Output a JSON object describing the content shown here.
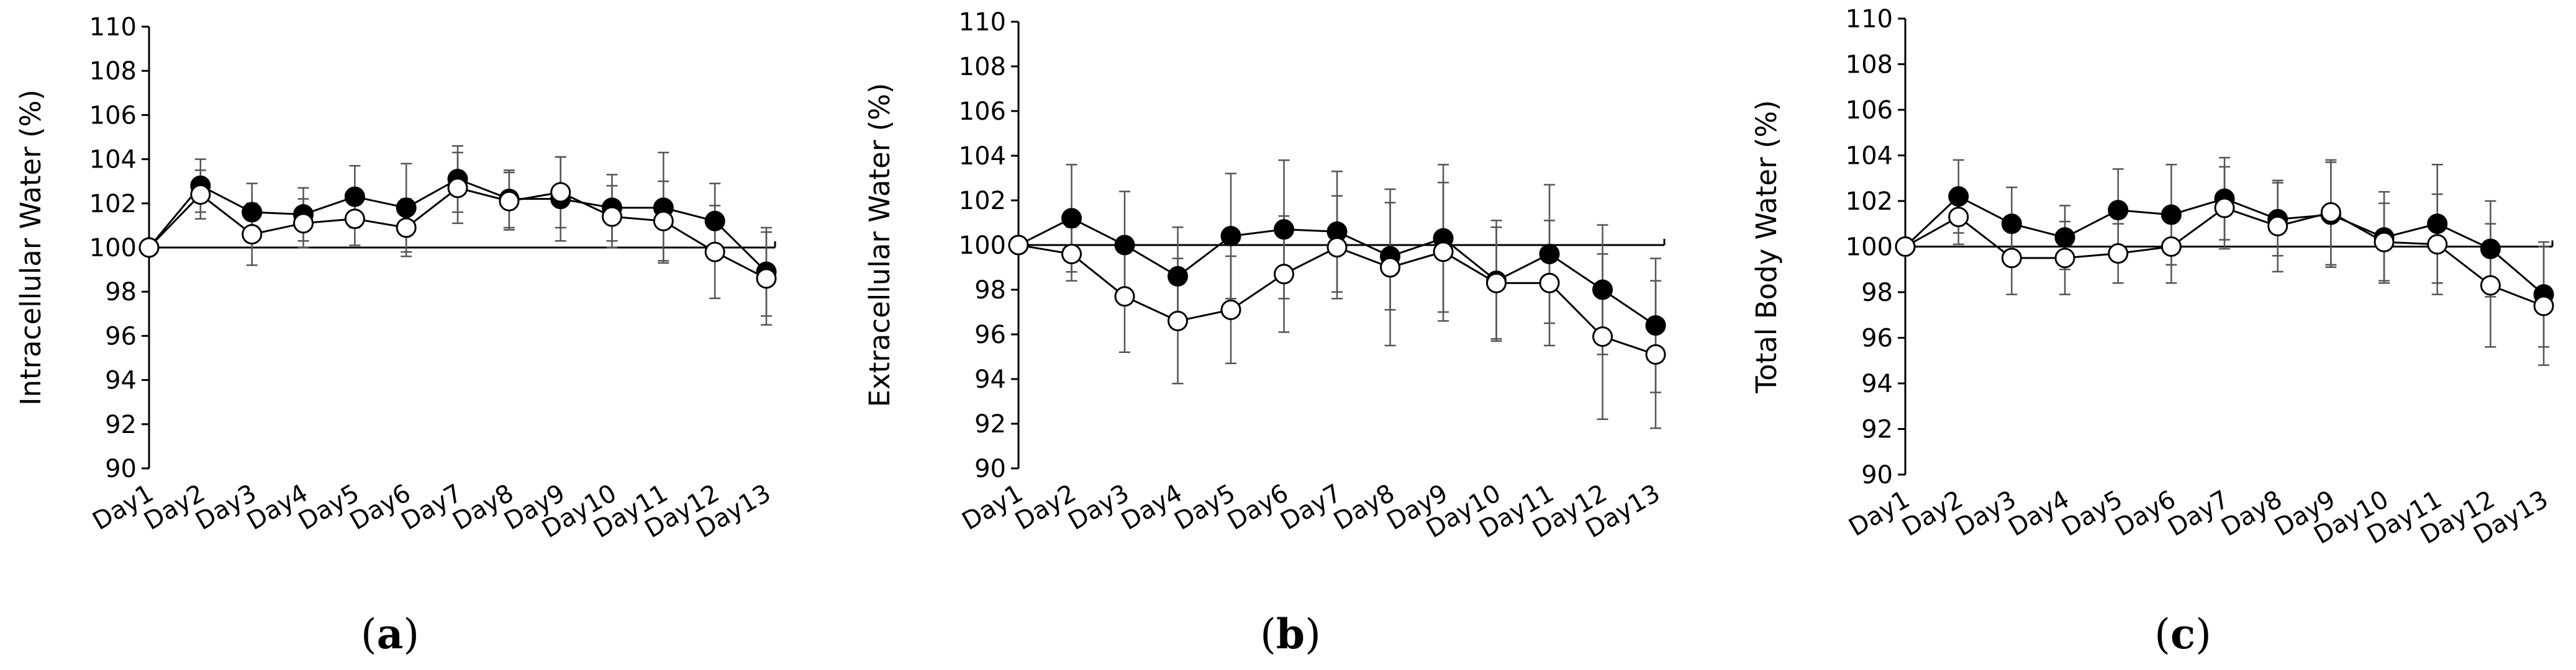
{
  "chart_data": [
    {
      "type": "line",
      "panel_label": "a",
      "title": "",
      "xlabel": "",
      "ylabel": "Intracellular Water (%)",
      "ylim": [
        90,
        110
      ],
      "yticks": [
        90,
        92,
        94,
        96,
        98,
        100,
        102,
        104,
        106,
        108,
        110
      ],
      "baseline": 100,
      "categories": [
        "Day1",
        "Day2",
        "Day3",
        "Day4",
        "Day5",
        "Day6",
        "Day7",
        "Day8",
        "Day9",
        "Day10",
        "Day11",
        "Day12",
        "Day13"
      ],
      "series": [
        {
          "name": "filled",
          "marker": "filled",
          "values": [
            100,
            102.8,
            101.6,
            101.5,
            102.3,
            101.8,
            103.1,
            102.2,
            102.2,
            101.8,
            101.8,
            101.2,
            98.9
          ],
          "errors": [
            0,
            1.2,
            1.3,
            1.2,
            1.4,
            2.0,
            1.5,
            1.3,
            1.9,
            1.5,
            2.5,
            1.7,
            2.0
          ]
        },
        {
          "name": "open",
          "marker": "open",
          "values": [
            100,
            102.4,
            100.6,
            101.1,
            101.3,
            100.9,
            102.7,
            102.1,
            102.5,
            101.4,
            101.2,
            99.8,
            98.6
          ],
          "errors": [
            0,
            1.1,
            1.4,
            1.1,
            1.2,
            1.3,
            1.6,
            1.3,
            1.6,
            1.4,
            1.8,
            2.1,
            2.1
          ]
        }
      ]
    },
    {
      "type": "line",
      "panel_label": "b",
      "title": "",
      "xlabel": "",
      "ylabel": "Extracellular Water  (%)",
      "ylim": [
        90,
        110
      ],
      "yticks": [
        90,
        92,
        94,
        96,
        98,
        100,
        102,
        104,
        106,
        108,
        110
      ],
      "baseline": 100,
      "categories": [
        "Day1",
        "Day2",
        "Day3",
        "Day4",
        "Day5",
        "Day6",
        "Day7",
        "Day8",
        "Day9",
        "Day10",
        "Day11",
        "Day12",
        "Day13"
      ],
      "series": [
        {
          "name": "filled",
          "marker": "filled",
          "values": [
            100,
            101.2,
            100,
            98.6,
            100.4,
            100.7,
            100.6,
            99.5,
            100.3,
            98.4,
            99.6,
            98.0,
            96.4
          ],
          "errors": [
            0,
            2.4,
            2.4,
            2.2,
            2.8,
            3.1,
            2.7,
            2.4,
            3.3,
            2.7,
            3.1,
            2.9,
            3.0
          ]
        },
        {
          "name": "open",
          "marker": "open",
          "values": [
            100,
            99.6,
            97.7,
            96.6,
            97.1,
            98.7,
            99.9,
            99.0,
            99.7,
            98.3,
            98.3,
            95.9,
            95.1
          ],
          "errors": [
            0,
            1.2,
            2.5,
            2.8,
            2.4,
            2.6,
            2.3,
            3.5,
            3.1,
            2.5,
            2.8,
            3.7,
            3.3
          ]
        }
      ]
    },
    {
      "type": "line",
      "panel_label": "c",
      "title": "",
      "xlabel": "",
      "ylabel": "Total Body Water  (%)",
      "ylim": [
        90,
        110
      ],
      "yticks": [
        90,
        92,
        94,
        96,
        98,
        100,
        102,
        104,
        106,
        108,
        110
      ],
      "baseline": 100,
      "categories": [
        "Day1",
        "Day2",
        "Day3",
        "Day4",
        "Day5",
        "Day6",
        "Day7",
        "Day8",
        "Day9",
        "Day10",
        "Day11",
        "Day12",
        "Day13"
      ],
      "series": [
        {
          "name": "filled",
          "marker": "filled",
          "values": [
            100,
            102.2,
            101.0,
            100.4,
            101.6,
            101.4,
            102.1,
            101.2,
            101.4,
            100.4,
            101.0,
            99.9,
            97.9
          ],
          "errors": [
            0,
            1.6,
            1.6,
            1.4,
            1.8,
            2.2,
            1.8,
            1.6,
            2.3,
            2.0,
            2.6,
            2.1,
            2.3
          ]
        },
        {
          "name": "open",
          "marker": "open",
          "values": [
            100,
            101.3,
            99.5,
            99.5,
            99.7,
            100.0,
            101.7,
            100.9,
            101.5,
            100.2,
            100.1,
            98.3,
            97.4
          ],
          "errors": [
            0,
            1.2,
            1.6,
            1.6,
            1.3,
            1.6,
            1.8,
            2.0,
            2.3,
            1.7,
            2.2,
            2.7,
            2.6
          ]
        }
      ]
    }
  ]
}
